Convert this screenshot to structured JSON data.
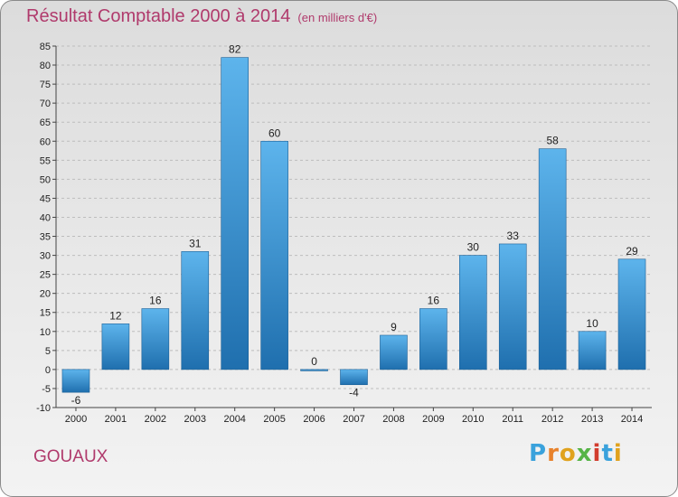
{
  "header": {
    "title": "Résultat Comptable 2000 à 2014",
    "subtitle": "(en milliers d'€)"
  },
  "footer": {
    "place": "GOUAUX",
    "logo": "Proxiti",
    "logo_colors": [
      "#3aa2dc",
      "#e8822c",
      "#e0a21e",
      "#56b447",
      "#d23c2e",
      "#3aa2dc",
      "#e0a21e"
    ]
  },
  "colors": {
    "bar_top": "#5db4ec",
    "bar_bottom": "#1f6fae",
    "title": "#b03a6c",
    "grid": "#bdbdbd"
  },
  "chart_data": {
    "type": "bar",
    "title": "Résultat Comptable 2000 à 2014",
    "subtitle": "(en milliers d'€)",
    "categories": [
      "2000",
      "2001",
      "2002",
      "2003",
      "2004",
      "2005",
      "2006",
      "2007",
      "2008",
      "2009",
      "2010",
      "2011",
      "2012",
      "2013",
      "2014"
    ],
    "values": [
      -6,
      12,
      16,
      31,
      82,
      60,
      0,
      -4,
      9,
      16,
      30,
      33,
      58,
      10,
      29
    ],
    "ylim": [
      -10,
      85
    ],
    "ytick_step": 5,
    "grid": true,
    "data_labels": true
  }
}
